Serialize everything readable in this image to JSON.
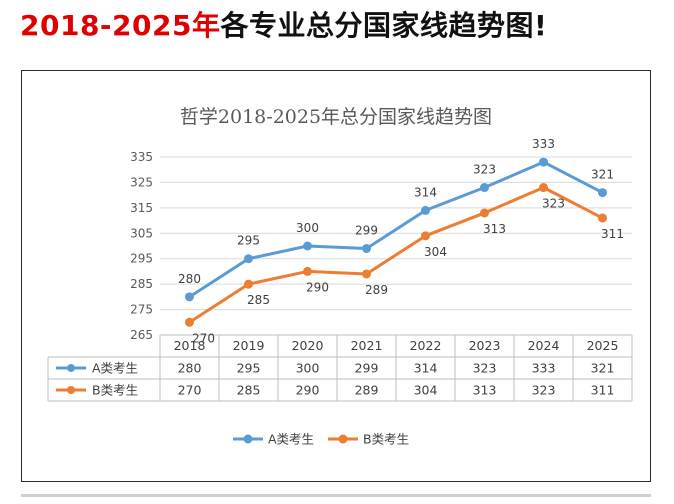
{
  "headline": {
    "highlight": "2018-2025年",
    "rest": "各专业总分国家线趋势图!"
  },
  "colors": {
    "series_a": "#5b9bd5",
    "series_b": "#ed7d31",
    "headline_red": "#e00000"
  },
  "chart_data": {
    "type": "line",
    "title": "哲学2018-2025年总分国家线趋势图",
    "categories": [
      "2018",
      "2019",
      "2020",
      "2021",
      "2022",
      "2023",
      "2024",
      "2025"
    ],
    "series": [
      {
        "name": "A类考生",
        "values": [
          280,
          295,
          300,
          299,
          314,
          323,
          333,
          321
        ]
      },
      {
        "name": "B类考生",
        "values": [
          270,
          285,
          290,
          289,
          304,
          313,
          323,
          311
        ]
      }
    ],
    "ylim": [
      265,
      335
    ],
    "yticks": [
      265,
      275,
      285,
      295,
      305,
      315,
      325,
      335
    ],
    "grid": true,
    "data_table": true,
    "legend": "bottom"
  }
}
